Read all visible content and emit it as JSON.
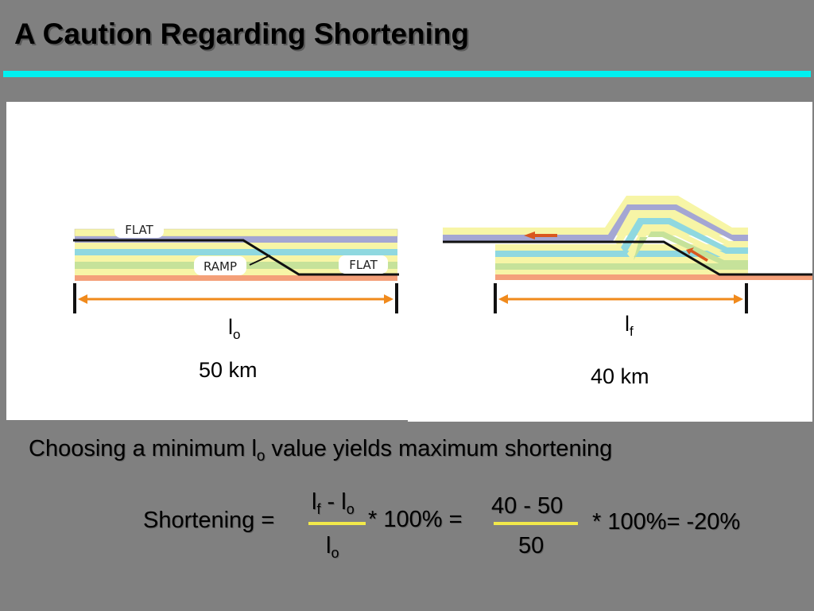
{
  "slide": {
    "title": "A Caution Regarding Shortening",
    "accent_color": "#00f0f0"
  },
  "diagram_left": {
    "labels": {
      "flat_top": "FLAT",
      "ramp": "RAMP",
      "flat_bottom": "FLAT"
    },
    "length_symbol": "l",
    "length_subscript": "o",
    "length_value": "50 km"
  },
  "diagram_right": {
    "length_symbol": "l",
    "length_subscript": "f",
    "length_value": "40 km"
  },
  "caption": {
    "before": "Choosing a minimum l",
    "subscript": "o",
    "after": " value yields maximum shortening"
  },
  "equation": {
    "lhs": "Shortening =",
    "frac1_num_a": "l",
    "frac1_num_a_sub": "f",
    "frac1_num_mid": " - l",
    "frac1_num_b_sub": "o",
    "frac1_den": "l",
    "frac1_den_sub": "o",
    "times1": "* 100% =",
    "frac2_num": "40 - 50",
    "frac2_den": "50",
    "result": "* 100%= -20%"
  },
  "colors": {
    "arrow": "#f08a1c",
    "layer_yellow": "#f7f5a6",
    "layer_purple": "#a4a6d3",
    "layer_cyan": "#8fd8e0",
    "layer_green": "#c6e29a",
    "layer_orange": "#f4a07a",
    "fraction_bar": "#f2e94a"
  }
}
